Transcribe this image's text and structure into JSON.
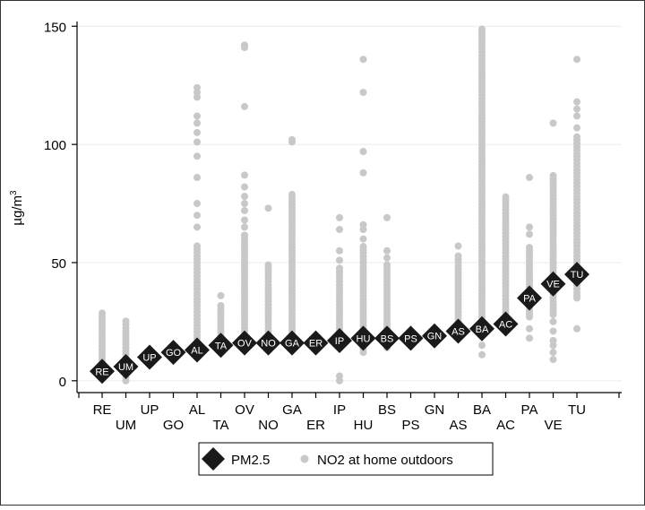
{
  "chart_data": {
    "type": "scatter",
    "ylabel": "µg/m³",
    "ylabel_main": "µg/m",
    "ylabel_sup": "3",
    "ylim": [
      -5,
      152
    ],
    "yticks": [
      0,
      50,
      100,
      150
    ],
    "grid": true,
    "legend_position": "bottom",
    "categories": [
      "RE",
      "UM",
      "UP",
      "GO",
      "AL",
      "TA",
      "OV",
      "NO",
      "GA",
      "ER",
      "IP",
      "HU",
      "BS",
      "PS",
      "GN",
      "AS",
      "BA",
      "AC",
      "PA",
      "VE",
      "TU"
    ],
    "label_rows": [
      "upper",
      "lower",
      "upper",
      "lower",
      "upper",
      "lower",
      "upper",
      "lower",
      "upper",
      "lower",
      "upper",
      "lower",
      "upper",
      "lower",
      "upper",
      "lower",
      "upper",
      "lower",
      "upper",
      "lower",
      "upper"
    ],
    "series": [
      {
        "name": "PM2.5",
        "marker": "diamond",
        "color": "#1a1a1a",
        "values": [
          4,
          6,
          10,
          12,
          13,
          15,
          16,
          16,
          16,
          16,
          17,
          18,
          18,
          18,
          19,
          21,
          22,
          24,
          35,
          41,
          45
        ]
      },
      {
        "name": "NO2 at home outdoors",
        "marker": "circle",
        "color": "#c8c8c8",
        "ranges": [
          {
            "min": 2,
            "max": 29,
            "outliers": []
          },
          {
            "min": 0,
            "max": 26,
            "outliers": []
          },
          {
            "min": 0,
            "max": 0,
            "outliers": []
          },
          {
            "min": 0,
            "max": 0,
            "outliers": []
          },
          {
            "min": 15,
            "max": 58,
            "outliers": [
              65,
              70,
              75,
              86,
              95,
              101,
              105,
              109,
              112,
              120,
              122,
              124
            ]
          },
          {
            "min": 15,
            "max": 32,
            "outliers": [
              36
            ]
          },
          {
            "min": 14,
            "max": 62,
            "outliers": [
              65,
              68,
              72,
              75,
              78,
              82,
              87,
              116,
              141,
              142
            ]
          },
          {
            "min": 14,
            "max": 49,
            "outliers": [
              73
            ]
          },
          {
            "min": 13,
            "max": 80,
            "outliers": [
              101,
              102
            ]
          },
          {
            "min": 0,
            "max": 0,
            "outliers": []
          },
          {
            "min": 14,
            "max": 48,
            "outliers": [
              0,
              2,
              51,
              55,
              64,
              69
            ]
          },
          {
            "min": 12,
            "max": 57,
            "outliers": [
              60,
              64,
              66,
              88,
              97,
              122,
              136
            ]
          },
          {
            "min": 14,
            "max": 49,
            "outliers": [
              52,
              55,
              69
            ]
          },
          {
            "min": 0,
            "max": 0,
            "outliers": []
          },
          {
            "min": 0,
            "max": 0,
            "outliers": []
          },
          {
            "min": 22,
            "max": 54,
            "outliers": [
              57
            ]
          },
          {
            "min": 20,
            "max": 150,
            "outliers": [
              11,
              15
            ]
          },
          {
            "min": 26,
            "max": 79,
            "outliers": []
          },
          {
            "min": 27,
            "max": 57,
            "outliers": [
              18,
              22,
              62,
              65,
              86
            ]
          },
          {
            "min": 28,
            "max": 88,
            "outliers": [
              9,
              12,
              15,
              17,
              21,
              25,
              109
            ]
          },
          {
            "min": 36,
            "max": 104,
            "outliers": [
              22,
              35,
              107,
              112,
              115,
              118,
              136
            ]
          }
        ]
      }
    ]
  }
}
